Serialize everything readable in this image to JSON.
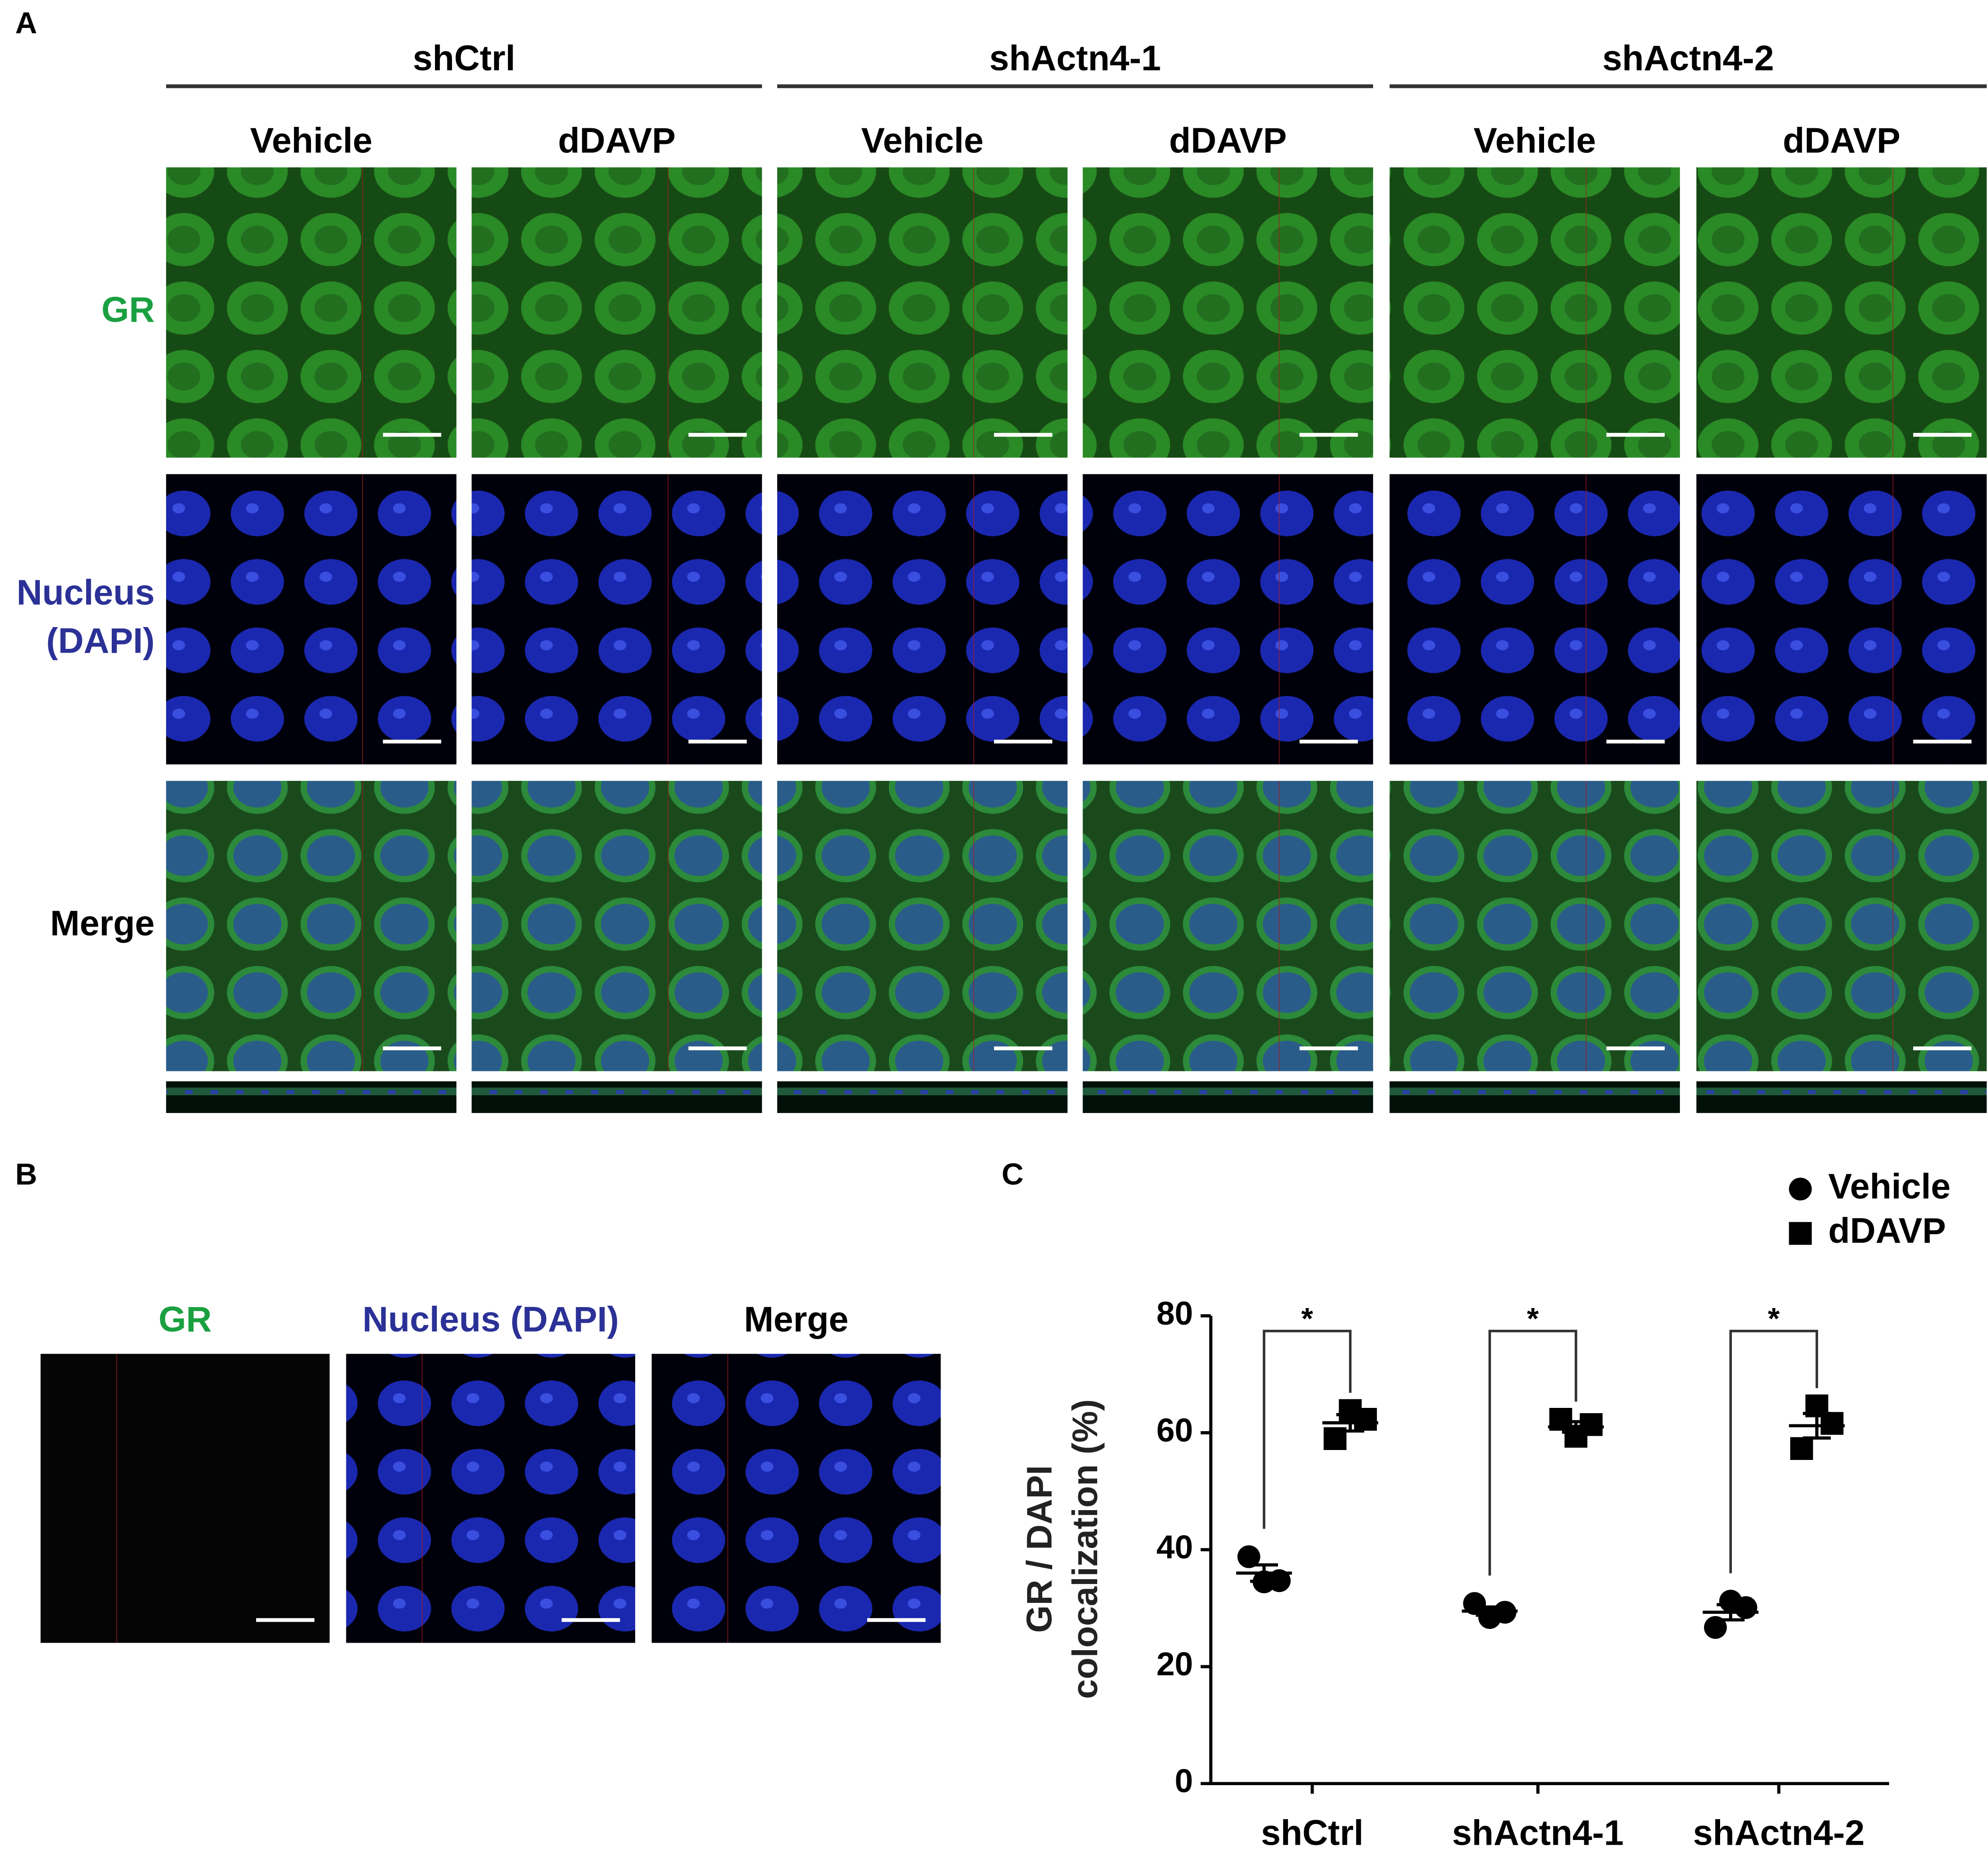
{
  "panel_a": {
    "label": "A",
    "groups": [
      "shCtrl",
      "shActn4-1",
      "shActn4-2"
    ],
    "conditions": [
      "Vehicle",
      "dDAVP",
      "Vehicle",
      "dDAVP",
      "Vehicle",
      "dDAVP"
    ],
    "row_labels": [
      [
        "GR"
      ],
      [
        "Nucleus",
        "(DAPI)"
      ],
      [
        "Merge"
      ]
    ]
  },
  "panel_b": {
    "label": "B",
    "columns": [
      "GR",
      "Nucleus (DAPI)",
      "Merge"
    ]
  },
  "chart_data": {
    "type": "scatter",
    "panel_label": "C",
    "y_label": [
      "GR / DAPI",
      "colocalization (%)"
    ],
    "categories": [
      "shCtrl",
      "shActn4-1",
      "shActn4-2"
    ],
    "series": [
      {
        "name": "Vehicle",
        "marker": "circle",
        "color": "#000000",
        "values": [
          [
            38.8,
            34.5,
            34.7
          ],
          [
            30.8,
            28.4,
            29.3
          ],
          [
            26.7,
            31.2,
            30.1
          ]
        ],
        "mean": [
          36,
          29.5,
          29.3
        ],
        "sem": [
          1.4,
          0.7,
          1.3
        ]
      },
      {
        "name": "dDAVP",
        "marker": "square",
        "color": "#000000",
        "values": [
          [
            59,
            63.8,
            62.3
          ],
          [
            62.3,
            59.4,
            61.4
          ],
          [
            57.3,
            64.6,
            61.6
          ]
        ],
        "mean": [
          61.7,
          61,
          61.2
        ],
        "sem": [
          1.4,
          0.9,
          2.1
        ]
      }
    ],
    "significance": [
      "*",
      "*",
      "*"
    ],
    "ylim": [
      0,
      80
    ],
    "yticks": [
      0,
      20,
      40,
      60,
      80
    ],
    "legend": "upper right"
  }
}
